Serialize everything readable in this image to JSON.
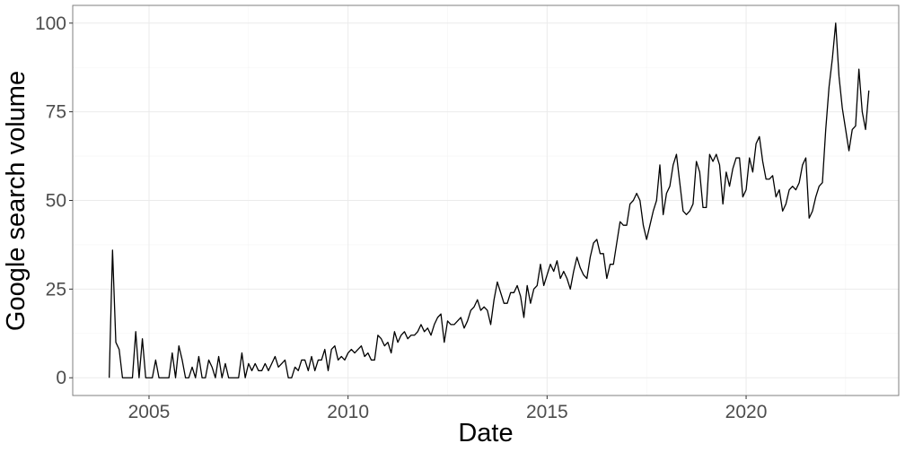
{
  "chart_data": {
    "type": "line",
    "title": "",
    "xlabel": "Date",
    "ylabel": "Google search volume",
    "x_type": "date",
    "xlim": [
      "2003-02-01",
      "2023-11-01"
    ],
    "ylim": [
      -5,
      105
    ],
    "x_ticks": [
      {
        "value": "2005-01-01",
        "label": "2005"
      },
      {
        "value": "2010-01-01",
        "label": "2010"
      },
      {
        "value": "2015-01-01",
        "label": "2015"
      },
      {
        "value": "2020-01-01",
        "label": "2020"
      }
    ],
    "y_ticks": [
      {
        "value": 0,
        "label": "0"
      },
      {
        "value": 25,
        "label": "25"
      },
      {
        "value": 50,
        "label": "50"
      },
      {
        "value": 75,
        "label": "75"
      },
      {
        "value": 100,
        "label": "100"
      }
    ],
    "grid": true,
    "line_color": "#000000",
    "series": [
      {
        "start": "2004-01",
        "frequency": "monthly",
        "values": [
          0,
          36,
          10,
          8,
          0,
          0,
          0,
          0,
          13,
          0,
          11,
          0,
          0,
          0,
          5,
          0,
          0,
          0,
          0,
          7,
          0,
          9,
          5,
          0,
          0,
          3,
          0,
          6,
          0,
          0,
          5,
          3,
          0,
          6,
          0,
          4,
          0,
          0,
          0,
          0,
          7,
          0,
          4,
          2,
          4,
          2,
          2,
          4,
          2,
          4,
          6,
          3,
          4,
          5,
          0,
          0,
          3,
          2,
          5,
          5,
          2,
          6,
          2,
          5,
          5,
          8,
          2,
          8,
          9,
          5,
          6,
          5,
          7,
          8,
          7,
          8,
          9,
          6,
          7,
          5,
          5,
          12,
          11,
          9,
          10,
          7,
          13,
          10,
          12,
          13,
          11,
          12,
          12,
          13,
          15,
          13,
          14,
          12,
          15,
          17,
          18,
          10,
          16,
          15,
          15,
          16,
          17,
          14,
          16,
          19,
          20,
          22,
          19,
          20,
          19,
          15,
          22,
          27,
          24,
          21,
          21,
          24,
          24,
          26,
          23,
          17,
          26,
          21,
          25,
          26,
          32,
          26,
          29,
          32,
          30,
          33,
          28,
          30,
          28,
          25,
          30,
          34,
          31,
          29,
          28,
          34,
          38,
          39,
          35,
          35,
          28,
          32,
          32,
          38,
          44,
          43,
          43,
          49,
          50,
          52,
          50,
          43,
          39,
          43,
          47,
          50,
          60,
          46,
          52,
          54,
          60,
          63,
          55,
          47,
          46,
          47,
          49,
          61,
          58,
          48,
          48,
          63,
          61,
          63,
          60,
          49,
          58,
          54,
          59,
          62,
          62,
          51,
          53,
          62,
          58,
          66,
          68,
          61,
          56,
          56,
          57,
          51,
          53,
          47,
          49,
          53,
          54,
          53,
          55,
          60,
          62,
          45,
          47,
          51,
          54,
          55,
          70,
          82,
          90,
          100,
          85,
          76,
          70,
          64,
          70,
          71,
          87,
          75,
          70,
          81
        ]
      }
    ]
  }
}
